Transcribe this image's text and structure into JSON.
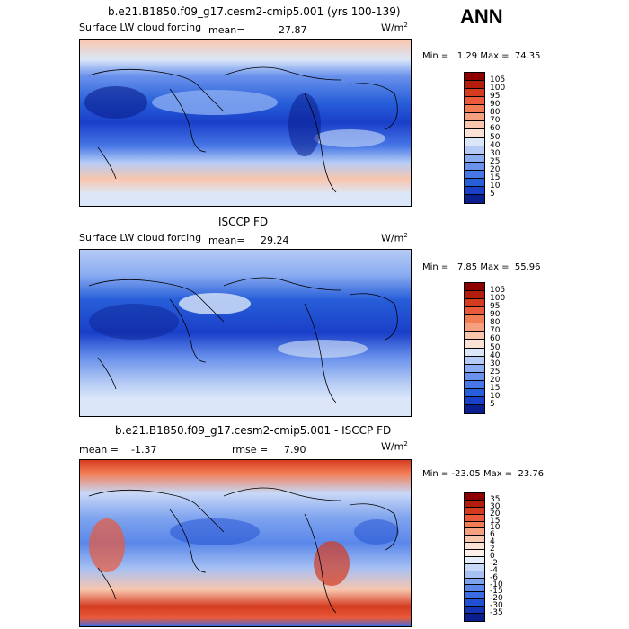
{
  "season": "ANN",
  "colors": {
    "ocean_high": "#f7c6b4",
    "ocean_mid": "#3b72e3",
    "ocean_low": "#1a3fc9",
    "border": "#000000"
  },
  "panels": [
    {
      "title": "b.e21.B1850.f09_g17.cesm2-cmip5.001 (yrs 100-139)",
      "variable": "Surface LW cloud forcing",
      "mean_label": "mean=",
      "mean_value": "27.87",
      "units": "W/m",
      "units_sup": "2",
      "min_label": "Min =",
      "min_value": "1.29",
      "max_label": "Max =",
      "max_value": "74.35",
      "colorbar_labels": [
        "105",
        "100",
        "95",
        "90",
        "80",
        "70",
        "60",
        "50",
        "40",
        "30",
        "25",
        "20",
        "15",
        "10",
        "5"
      ],
      "colorbar_colors": [
        "#8e0000",
        "#b21d0e",
        "#d43b1f",
        "#ea5a3b",
        "#f27d55",
        "#f5a07f",
        "#f9c6ae",
        "#fbe2d4",
        "#dbe7f9",
        "#b5cbf5",
        "#8aacf1",
        "#6a92ec",
        "#4777e6",
        "#275ed9",
        "#1a3fc9",
        "#0a1e8e"
      ]
    },
    {
      "title": "ISCCP FD",
      "variable": "Surface LW cloud forcing",
      "mean_label": "mean=",
      "mean_value": "29.24",
      "units": "W/m",
      "units_sup": "2",
      "min_label": "Min =",
      "min_value": "7.85",
      "max_label": "Max =",
      "max_value": "55.96",
      "colorbar_labels": [
        "105",
        "100",
        "95",
        "90",
        "80",
        "70",
        "60",
        "50",
        "40",
        "30",
        "25",
        "20",
        "15",
        "10",
        "5"
      ],
      "colorbar_colors": [
        "#8e0000",
        "#b21d0e",
        "#d43b1f",
        "#ea5a3b",
        "#f27d55",
        "#f5a07f",
        "#f9c6ae",
        "#fbe2d4",
        "#dbe7f9",
        "#b5cbf5",
        "#8aacf1",
        "#6a92ec",
        "#4777e6",
        "#275ed9",
        "#1a3fc9",
        "#0a1e8e"
      ]
    },
    {
      "title": "b.e21.B1850.f09_g17.cesm2-cmip5.001 - ISCCP FD",
      "mean_label": "mean =",
      "mean_value": "-1.37",
      "rmse_label": "rmse =",
      "rmse_value": "7.90",
      "units": "W/m",
      "units_sup": "2",
      "min_label": "Min =",
      "min_value": "-23.05",
      "max_label": "Max =",
      "max_value": "23.76",
      "colorbar_labels": [
        "35",
        "30",
        "20",
        "15",
        "10",
        "6",
        "4",
        "2",
        "0",
        "-2",
        "-4",
        "-6",
        "-10",
        "-15",
        "-20",
        "-30",
        "-35"
      ],
      "colorbar_colors": [
        "#8e0000",
        "#b21d0e",
        "#d43b1f",
        "#ea5a3b",
        "#f27d55",
        "#f5a07f",
        "#f9c6ae",
        "#fbe2d4",
        "#fdf1ea",
        "#e6eefb",
        "#c8d8f7",
        "#a6c0f3",
        "#7ea3ee",
        "#5a87e9",
        "#3a6ce2",
        "#2250d2",
        "#1434b4",
        "#0a1e8e"
      ]
    }
  ]
}
